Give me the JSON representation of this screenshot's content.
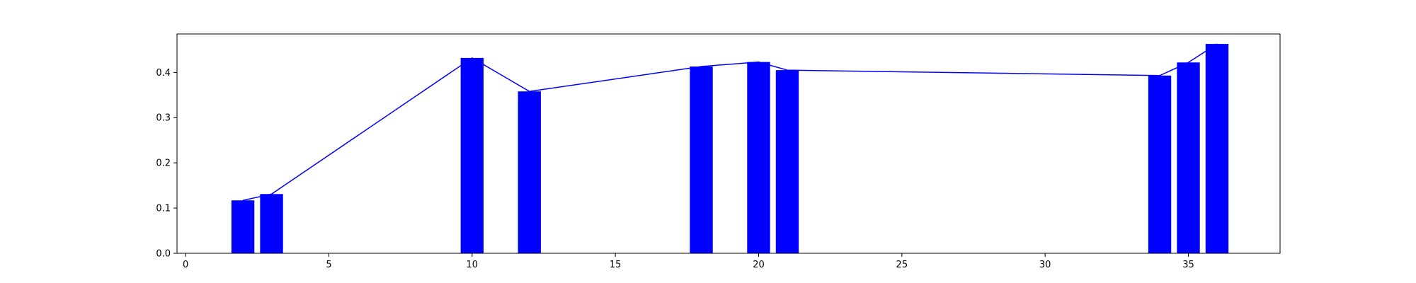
{
  "chart_data": {
    "type": "bar",
    "title": "",
    "xlabel": "",
    "ylabel": "",
    "xlim": [
      -0.3,
      38.2
    ],
    "ylim": [
      0,
      0.485
    ],
    "xticks": [
      0,
      5,
      10,
      15,
      20,
      25,
      30,
      35
    ],
    "yticks": [
      0.0,
      0.1,
      0.2,
      0.3,
      0.4
    ],
    "ytick_labels": [
      "0.0",
      "0.1",
      "0.2",
      "0.3",
      "0.4"
    ],
    "grid": false,
    "bar_width": 0.8,
    "series": [
      {
        "type": "bar",
        "x": [
          2,
          3,
          10,
          12,
          18,
          20,
          21,
          34,
          35,
          36
        ],
        "values": [
          0.117,
          0.131,
          0.432,
          0.358,
          0.413,
          0.423,
          0.405,
          0.393,
          0.422,
          0.463
        ],
        "color": "#0000ff"
      },
      {
        "type": "line",
        "x": [
          2,
          3,
          10,
          12,
          18,
          20,
          21,
          34,
          35,
          36
        ],
        "values": [
          0.117,
          0.131,
          0.432,
          0.358,
          0.413,
          0.423,
          0.405,
          0.393,
          0.422,
          0.463
        ],
        "color": "#0000ff"
      }
    ]
  }
}
